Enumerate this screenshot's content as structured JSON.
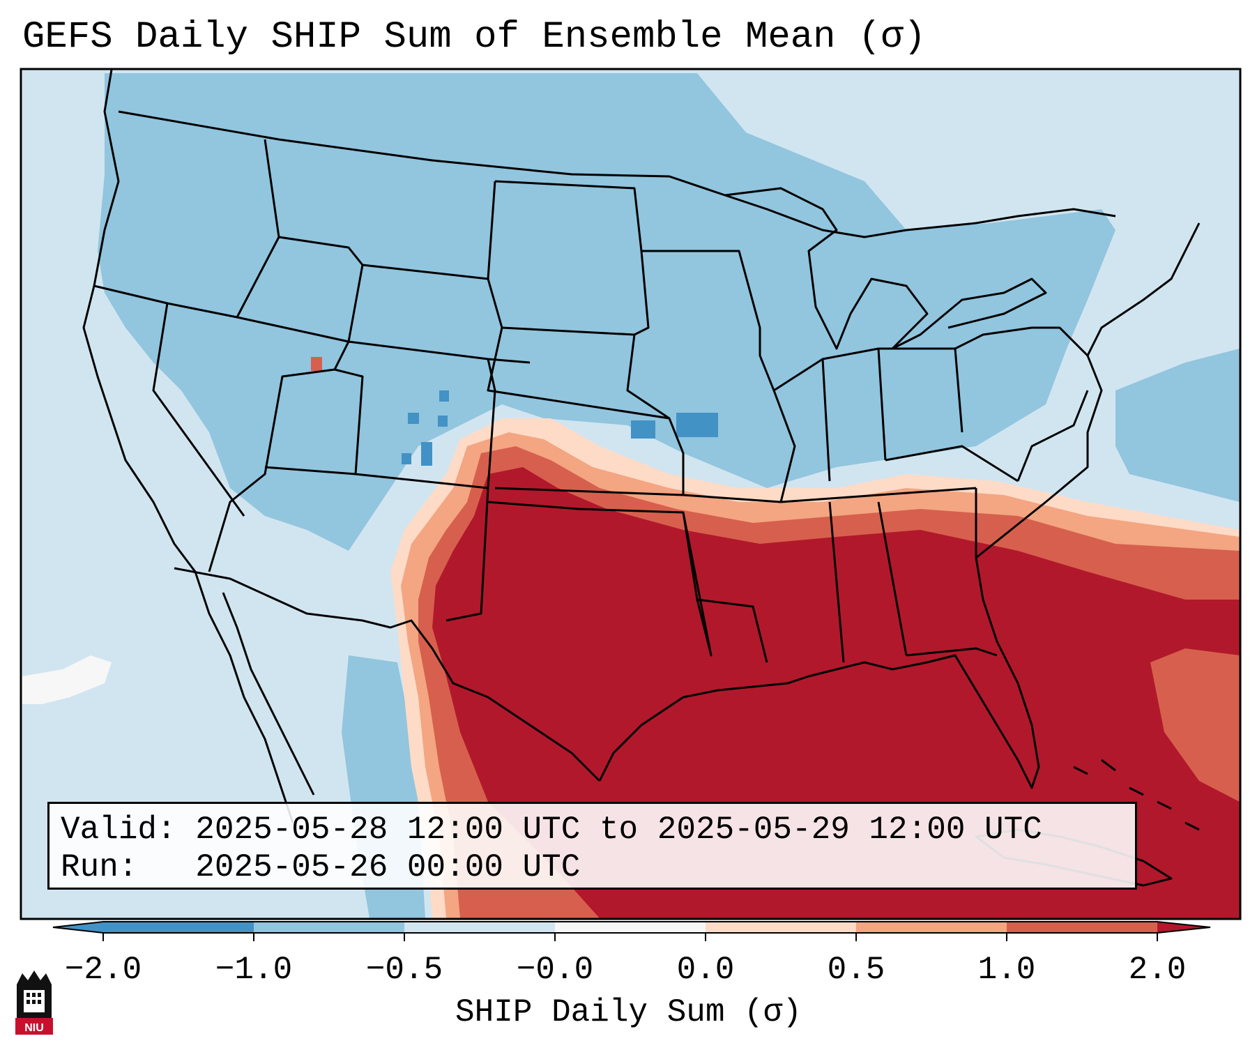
{
  "title": "GEFS Daily SHIP Sum of Ensemble Mean (σ)",
  "info": {
    "valid_label": "Valid:",
    "valid_value": "2025-05-28 12:00 UTC to 2025-05-29 12:00 UTC",
    "run_label": "Run:",
    "run_value": "2025-05-26 00:00 UTC"
  },
  "colorbar": {
    "label": "SHIP Daily Sum (σ)",
    "ticks": [
      "−2.0",
      "−1.0",
      "−0.5",
      "−0.0",
      "0.0",
      "0.5",
      "1.0",
      "2.0"
    ],
    "colors": [
      "#4292c6",
      "#92c5de",
      "#d1e5f0",
      "#f7f7f7",
      "#fddbc7",
      "#f4a582",
      "#d6604d",
      "#b2182b"
    ]
  },
  "logo": {
    "text": "NIU"
  }
}
